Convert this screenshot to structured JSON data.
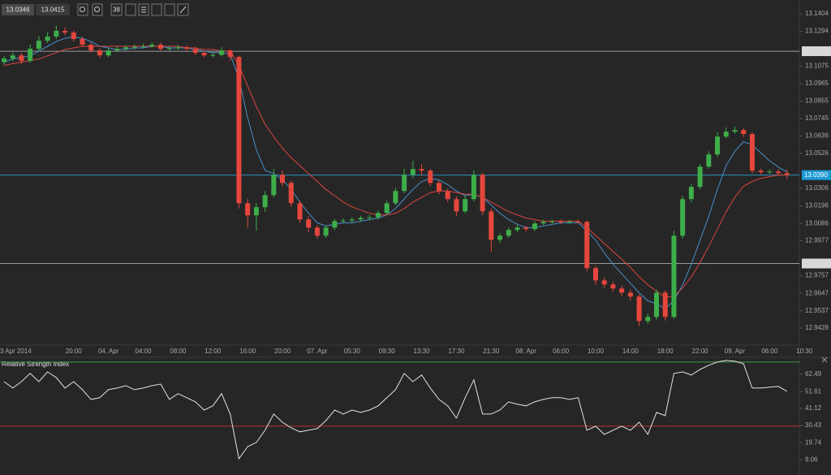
{
  "toolbar": {
    "prices": [
      "13.0346",
      "13.0415"
    ],
    "label": "38"
  },
  "chart_data": [
    {
      "type": "candlestick",
      "categories": [
        null,
        "3 Apr 2014",
        null,
        null,
        null,
        null,
        null,
        null,
        "20:00",
        null,
        null,
        null,
        "04. Apr",
        null,
        null,
        null,
        "04:00",
        null,
        null,
        null,
        "08:00",
        null,
        null,
        null,
        "12:00",
        null,
        null,
        null,
        "16:00",
        null,
        null,
        null,
        "20:00",
        null,
        null,
        null,
        "07. Apr",
        null,
        null,
        null,
        "05:30",
        null,
        null,
        null,
        "09:30",
        null,
        null,
        null,
        "13:30",
        null,
        null,
        null,
        "17:30",
        null,
        null,
        null,
        "21:30",
        null,
        null,
        null,
        "08. Apr",
        null,
        null,
        null,
        "06:00",
        null,
        null,
        null,
        "10:00",
        null,
        null,
        null,
        "14:00",
        null,
        null,
        null,
        "18:00",
        null,
        null,
        null,
        "22:00",
        null,
        null,
        null,
        "09. Apr",
        null,
        null,
        null,
        "06:00",
        null,
        null,
        null,
        "10:30"
      ],
      "ohlc": [
        [
          13.11,
          13.114,
          13.1085,
          13.1123
        ],
        [
          13.1123,
          13.116,
          13.1105,
          13.1143
        ],
        [
          13.1143,
          13.1158,
          13.109,
          13.1108
        ],
        [
          13.1108,
          13.121,
          13.1095,
          13.1184
        ],
        [
          13.1184,
          13.1265,
          13.117,
          13.1235
        ],
        [
          13.1235,
          13.129,
          13.122,
          13.1261
        ],
        [
          13.1261,
          13.133,
          13.1245,
          13.1297
        ],
        [
          13.1297,
          13.132,
          13.127,
          13.1286
        ],
        [
          13.1286,
          13.13,
          13.123,
          13.1246
        ],
        [
          13.1246,
          13.126,
          13.1195,
          13.121
        ],
        [
          13.121,
          13.1225,
          13.116,
          13.1174
        ],
        [
          13.1174,
          13.1188,
          13.1128,
          13.1143
        ],
        [
          13.1143,
          13.1188,
          13.113,
          13.1174
        ],
        [
          13.1174,
          13.12,
          13.1162,
          13.1184
        ],
        [
          13.1184,
          13.1208,
          13.1172,
          13.1194
        ],
        [
          13.1194,
          13.1212,
          13.118,
          13.1197
        ],
        [
          13.1197,
          13.1215,
          13.1185,
          13.12
        ],
        [
          13.12,
          13.1225,
          13.1188,
          13.121
        ],
        [
          13.121,
          13.1222,
          13.117,
          13.1184
        ],
        [
          13.1184,
          13.12,
          13.1172,
          13.1188
        ],
        [
          13.1188,
          13.1208,
          13.1176,
          13.1194
        ],
        [
          13.1194,
          13.1206,
          13.1172,
          13.1184
        ],
        [
          13.1184,
          13.1196,
          13.1145,
          13.1159
        ],
        [
          13.1159,
          13.117,
          13.113,
          13.1143
        ],
        [
          13.1143,
          13.1158,
          13.113,
          13.1146
        ],
        [
          13.1146,
          13.1195,
          13.1135,
          13.1174
        ],
        [
          13.1174,
          13.118,
          13.111,
          13.1133
        ],
        [
          13.1133,
          13.114,
          13.018,
          13.0213
        ],
        [
          13.0213,
          13.024,
          13.006,
          13.0137
        ],
        [
          13.0137,
          13.0215,
          13.004,
          13.0188
        ],
        [
          13.0188,
          13.029,
          13.016,
          13.0264
        ],
        [
          13.0264,
          13.043,
          13.025,
          13.0392
        ],
        [
          13.0392,
          13.042,
          13.032,
          13.0341
        ],
        [
          13.0341,
          13.0355,
          13.019,
          13.0213
        ],
        [
          13.0213,
          13.023,
          13.009,
          13.0111
        ],
        [
          13.0111,
          13.013,
          13.003,
          13.006
        ],
        [
          13.006,
          13.0075,
          12.999,
          13.0009
        ],
        [
          13.0009,
          13.0075,
          12.9995,
          13.006
        ],
        [
          13.006,
          13.0115,
          13.0045,
          13.0101
        ],
        [
          13.0101,
          13.0118,
          13.0088,
          13.0104
        ],
        [
          13.0104,
          13.0125,
          13.0092,
          13.0111
        ],
        [
          13.0111,
          13.0135,
          13.0098,
          13.0121
        ],
        [
          13.0121,
          13.0138,
          13.0108,
          13.0124
        ],
        [
          13.0124,
          13.0168,
          13.011,
          13.0152
        ],
        [
          13.0152,
          13.023,
          13.014,
          13.0213
        ],
        [
          13.0213,
          13.031,
          13.02,
          13.029
        ],
        [
          13.029,
          13.043,
          13.0275,
          13.0392
        ],
        [
          13.0392,
          13.048,
          13.037,
          13.0428
        ],
        [
          13.0428,
          13.046,
          13.039,
          13.0418
        ],
        [
          13.0418,
          13.043,
          13.032,
          13.0341
        ],
        [
          13.0341,
          13.0355,
          13.027,
          13.029
        ],
        [
          13.029,
          13.0305,
          13.022,
          13.0239
        ],
        [
          13.0239,
          13.0255,
          13.013,
          13.0162
        ],
        [
          13.0162,
          13.026,
          13.015,
          13.0239
        ],
        [
          13.0239,
          13.042,
          13.0225,
          13.0392
        ],
        [
          13.0392,
          13.0405,
          13.014,
          13.0162
        ],
        [
          13.0162,
          13.018,
          12.991,
          12.9983
        ],
        [
          12.9983,
          13.0025,
          12.9965,
          13.0009
        ],
        [
          13.0009,
          13.006,
          12.9995,
          13.0045
        ],
        [
          13.0045,
          13.0075,
          13.003,
          13.006
        ],
        [
          13.006,
          13.0072,
          13.0035,
          13.005
        ],
        [
          13.005,
          13.01,
          13.0038,
          13.0086
        ],
        [
          13.0086,
          13.0108,
          13.0075,
          13.0096
        ],
        [
          13.0096,
          13.011,
          13.0085,
          13.0099
        ],
        [
          13.0099,
          13.011,
          13.0082,
          13.0094
        ],
        [
          13.0094,
          13.0108,
          13.0084,
          13.0098
        ],
        [
          13.0098,
          13.011,
          13.0085,
          13.0096
        ],
        [
          13.0096,
          13.0105,
          12.9785,
          12.9805
        ],
        [
          12.9805,
          12.982,
          12.97,
          12.9728
        ],
        [
          12.9728,
          12.9745,
          12.968,
          12.9702
        ],
        [
          12.9702,
          12.972,
          12.9655,
          12.9677
        ],
        [
          12.9677,
          12.9695,
          12.963,
          12.9651
        ],
        [
          12.9651,
          12.967,
          12.96,
          12.9626
        ],
        [
          12.9626,
          12.964,
          12.944,
          12.9472
        ],
        [
          12.9472,
          12.952,
          12.9455,
          12.9498
        ],
        [
          12.9498,
          12.967,
          12.948,
          12.9651
        ],
        [
          12.9651,
          12.9665,
          12.9475,
          12.9498
        ],
        [
          12.9498,
          13.004,
          12.9485,
          13.0009
        ],
        [
          13.0009,
          13.026,
          12.999,
          13.0239
        ],
        [
          13.0239,
          13.0335,
          13.022,
          13.0316
        ],
        [
          13.0316,
          13.046,
          13.03,
          13.0443
        ],
        [
          13.0443,
          13.054,
          13.043,
          13.052
        ],
        [
          13.052,
          13.066,
          13.0505,
          13.0632
        ],
        [
          13.0632,
          13.069,
          13.062,
          13.0663
        ],
        [
          13.0663,
          13.0695,
          13.065,
          13.0673
        ],
        [
          13.0673,
          13.0685,
          13.063,
          13.0648
        ],
        [
          13.0648,
          13.066,
          13.04,
          13.0418
        ],
        [
          13.0418,
          13.043,
          13.0395,
          13.0408
        ],
        [
          13.0408,
          13.0425,
          13.0398,
          13.0412
        ],
        [
          13.0412,
          13.0428,
          13.0388,
          13.0402
        ],
        [
          13.0402,
          13.0425,
          13.0365,
          13.039
        ],
        null,
        null
      ],
      "up_color": "#3dae4a",
      "down_color": "#e5473c",
      "series": [
        {
          "color": "#4a8fc9",
          "values": [
            13.11,
            13.112,
            13.113,
            13.114,
            13.117,
            13.12,
            13.123,
            13.125,
            13.126,
            13.125,
            13.123,
            13.12,
            13.119,
            13.118,
            13.118,
            13.119,
            13.119,
            13.12,
            13.12,
            13.119,
            13.119,
            13.119,
            13.118,
            13.117,
            13.116,
            13.116,
            13.115,
            13.1,
            13.075,
            13.055,
            13.042,
            13.04,
            13.036,
            13.03,
            13.022,
            13.015,
            13.009,
            13.007,
            13.008,
            13.009,
            13.009,
            13.01,
            13.011,
            13.012,
            13.014,
            13.018,
            13.024,
            13.03,
            13.035,
            13.037,
            13.036,
            13.033,
            13.029,
            13.026,
            13.027,
            13.025,
            13.02,
            13.015,
            13.011,
            13.008,
            13.006,
            13.006,
            13.007,
            13.008,
            13.009,
            13.009,
            13.009,
            13.004,
            12.998,
            12.99,
            12.983,
            12.977,
            12.971,
            12.965,
            12.96,
            12.958,
            12.955,
            12.96,
            12.97,
            12.983,
            12.998,
            13.013,
            13.03,
            13.045,
            13.054,
            13.06,
            13.058,
            13.053,
            13.048,
            13.044,
            13.041,
            null,
            null
          ]
        },
        {
          "color": "#d9463e",
          "values": [
            13.108,
            13.109,
            13.11,
            13.111,
            13.112,
            13.114,
            13.116,
            13.118,
            13.119,
            13.12,
            13.12,
            13.12,
            13.12,
            13.12,
            13.12,
            13.12,
            13.12,
            13.12,
            13.12,
            13.12,
            13.12,
            13.119,
            13.119,
            13.118,
            13.118,
            13.117,
            13.117,
            13.108,
            13.095,
            13.082,
            13.071,
            13.063,
            13.056,
            13.05,
            13.045,
            13.04,
            13.035,
            13.03,
            13.026,
            13.022,
            13.019,
            13.017,
            13.015,
            13.014,
            13.014,
            13.015,
            13.018,
            13.022,
            13.025,
            13.028,
            13.029,
            13.029,
            13.028,
            13.027,
            13.027,
            13.025,
            13.022,
            13.019,
            13.016,
            13.014,
            13.012,
            13.011,
            13.01,
            13.01,
            13.01,
            13.01,
            13.01,
            13.006,
            13.001,
            12.996,
            12.991,
            12.986,
            12.981,
            12.975,
            12.97,
            12.966,
            12.962,
            12.963,
            12.968,
            12.975,
            12.984,
            12.994,
            13.005,
            13.016,
            13.025,
            13.032,
            13.035,
            13.037,
            13.038,
            13.039,
            13.039,
            null,
            null
          ]
        }
      ],
      "hlines": [
        {
          "value": 13.1169,
          "color": "#9a9a9a",
          "tag_color": "#d8d8d8"
        },
        {
          "value": 13.039,
          "label": "13.0390",
          "color": "#2c8fc0",
          "tag_color": "#1e9bd7"
        },
        {
          "value": 12.9834,
          "color": "#9a9a9a",
          "tag_color": "#d8d8d8"
        }
      ],
      "ylim": [
        12.9321,
        13.1491
      ],
      "yticks": [
        13.1404,
        13.1294,
        13.1075,
        13.0965,
        13.0855,
        13.0745,
        13.0636,
        13.0526,
        13.0306,
        13.0196,
        13.0086,
        12.9977,
        12.9757,
        12.9647,
        12.9537,
        12.9428
      ]
    },
    {
      "type": "line",
      "title": "Relative Strength Index",
      "color": "#e2e2e2",
      "values": [
        57.8,
        53.8,
        57.8,
        62.9,
        57.8,
        63.9,
        60.4,
        53.8,
        57.8,
        52.8,
        46.7,
        47.8,
        52.8,
        53.8,
        55.3,
        52.8,
        53.8,
        55.3,
        56.3,
        46.7,
        50.3,
        47.8,
        45.2,
        40.1,
        42.7,
        50.3,
        37.6,
        9.7,
        17.3,
        19.9,
        27.5,
        37.6,
        32.5,
        29.0,
        26.5,
        27.5,
        28.5,
        33.5,
        40.1,
        37.6,
        40.1,
        38.6,
        40.1,
        42.7,
        47.8,
        52.8,
        62.9,
        57.8,
        61.9,
        53.8,
        46.7,
        42.7,
        35.1,
        47.8,
        58.9,
        37.6,
        37.6,
        40.1,
        45.2,
        43.7,
        42.7,
        45.2,
        46.7,
        47.8,
        47.8,
        46.7,
        47.8,
        27.5,
        30.0,
        24.9,
        27.5,
        30.0,
        27.5,
        32.5,
        24.9,
        38.6,
        36.6,
        62.9,
        63.9,
        61.9,
        65.4,
        68.0,
        70.0,
        71.0,
        70.5,
        69.0,
        53.8,
        53.8,
        54.3,
        54.8,
        51.8,
        null,
        null
      ],
      "levels": [
        {
          "value": 70,
          "color": "#3f9a3f"
        },
        {
          "value": 30,
          "color": "#b8342e"
        }
      ],
      "ylim": [
        1.1,
        73.0
      ],
      "yticks": [
        62.49,
        51.61,
        41.12,
        30.43,
        19.74,
        9.06
      ]
    }
  ]
}
